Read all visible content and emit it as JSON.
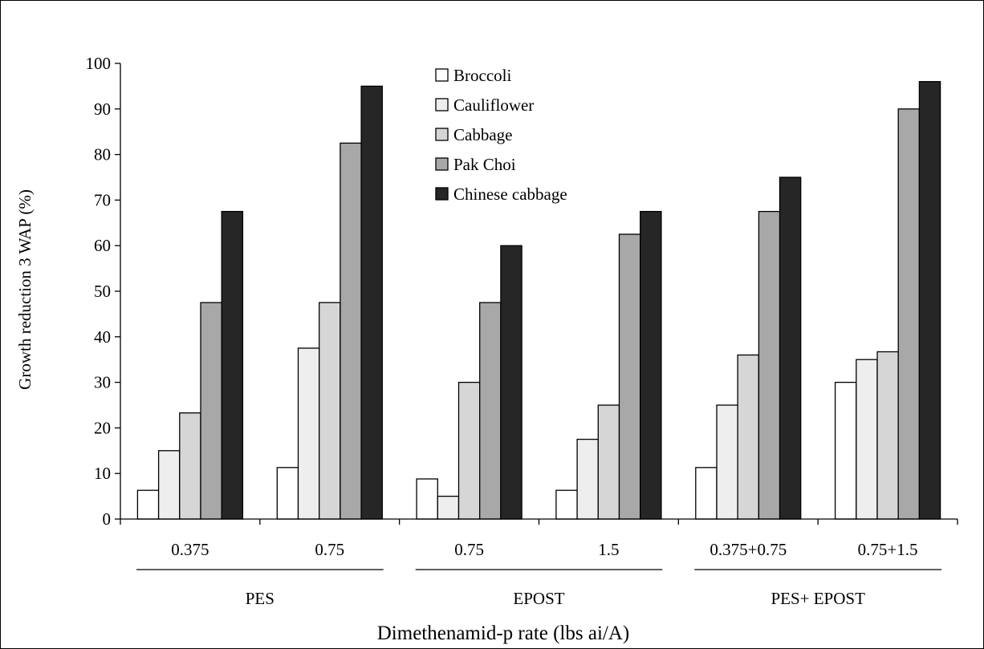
{
  "chart_data": {
    "type": "bar",
    "ylabel": "Growth reduction 3 WAP (%)",
    "xlabel": "Dimethenamid-p rate (lbs ai/A)",
    "ylim": [
      0,
      100
    ],
    "yticks": [
      0,
      10,
      20,
      30,
      40,
      50,
      60,
      70,
      80,
      90,
      100
    ],
    "categories": [
      "0.375",
      "0.75",
      "0.75",
      "1.5",
      "0.375+0.75",
      "0.75+1.5"
    ],
    "groups": [
      {
        "label": "PES",
        "categories": [
          0,
          1
        ]
      },
      {
        "label": "EPOST",
        "categories": [
          2,
          3
        ]
      },
      {
        "label": "PES+ EPOST",
        "categories": [
          4,
          5
        ]
      }
    ],
    "series": [
      {
        "name": "Broccoli",
        "color": "#ffffff",
        "values": [
          6.3,
          11.3,
          8.8,
          6.3,
          11.3,
          30
        ]
      },
      {
        "name": "Cauliflower",
        "color": "#eeeeee",
        "values": [
          15,
          37.5,
          5,
          17.5,
          25,
          35
        ]
      },
      {
        "name": "Cabbage",
        "color": "#d6d6d6",
        "values": [
          23.3,
          47.5,
          30,
          25,
          36,
          36.7
        ]
      },
      {
        "name": "Pak Choi",
        "color": "#a8a8a8",
        "values": [
          47.5,
          82.5,
          47.5,
          62.5,
          67.5,
          90
        ]
      },
      {
        "name": "Chinese cabbage",
        "color": "#262626",
        "values": [
          67.5,
          95,
          60,
          67.5,
          75,
          96
        ]
      }
    ],
    "legend_position": "top-center",
    "grid": false
  }
}
